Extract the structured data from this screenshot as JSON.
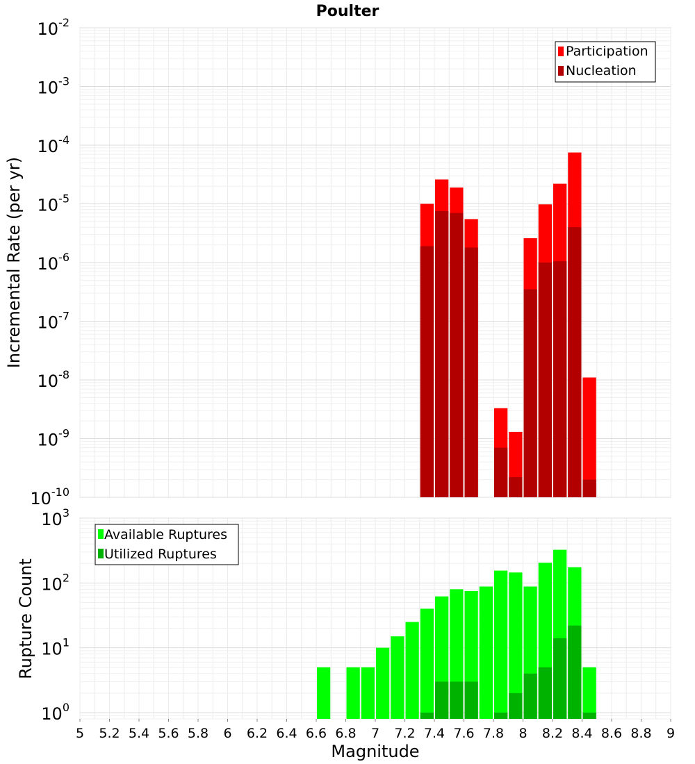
{
  "chart_data": [
    {
      "type": "bar",
      "title": "Poulter",
      "ylabel": "Incremental Rate (per yr)",
      "xlim": [
        5,
        9
      ],
      "ylim": [
        1e-10,
        0.01
      ],
      "yscale": "log",
      "grid": true,
      "legend_position": "top-right",
      "bar_width": 0.1,
      "y_ticks": [
        {
          "base": "10",
          "exp": "-2"
        },
        {
          "base": "10",
          "exp": "-3"
        },
        {
          "base": "10",
          "exp": "-4"
        },
        {
          "base": "10",
          "exp": "-5"
        },
        {
          "base": "10",
          "exp": "-6"
        },
        {
          "base": "10",
          "exp": "-7"
        },
        {
          "base": "10",
          "exp": "-8"
        },
        {
          "base": "10",
          "exp": "-9"
        },
        {
          "base": "10",
          "exp": "-10"
        }
      ],
      "series": [
        {
          "name": "Participation",
          "color": "#ff0000",
          "x": [
            7.35,
            7.45,
            7.55,
            7.65,
            7.85,
            7.95,
            8.05,
            8.15,
            8.25,
            8.35,
            8.45
          ],
          "values": [
            1e-05,
            2.6e-05,
            1.9e-05,
            5.5e-06,
            3.3e-09,
            1.3e-09,
            2.6e-06,
            9.8e-06,
            2.2e-05,
            7.5e-05,
            1.1e-08
          ]
        },
        {
          "name": "Nucleation",
          "color": "#b20000",
          "x": [
            7.35,
            7.45,
            7.55,
            7.65,
            7.85,
            7.95,
            8.05,
            8.15,
            8.25,
            8.35,
            8.45
          ],
          "values": [
            1.9e-06,
            7.5e-06,
            7e-06,
            1.8e-06,
            7e-10,
            2.2e-10,
            3.5e-07,
            1e-06,
            1.05e-06,
            4e-06,
            2e-10
          ]
        }
      ]
    },
    {
      "type": "bar",
      "xlabel": "Magnitude",
      "ylabel": "Rupture Count",
      "xlim": [
        5,
        9
      ],
      "ylim": [
        0.8,
        1000
      ],
      "yscale": "log",
      "grid": true,
      "legend_position": "top-left",
      "bar_width": 0.1,
      "x_ticks": [
        "5",
        "5.2",
        "5.4",
        "5.6",
        "5.8",
        "6",
        "6.2",
        "6.4",
        "6.6",
        "6.8",
        "7",
        "7.2",
        "7.4",
        "7.6",
        "7.8",
        "8",
        "8.2",
        "8.4",
        "8.6",
        "8.8",
        "9"
      ],
      "y_ticks": [
        {
          "base": "10",
          "exp": "3"
        },
        {
          "base": "10",
          "exp": "2"
        },
        {
          "base": "10",
          "exp": "1"
        },
        {
          "base": "10",
          "exp": "0"
        }
      ],
      "series": [
        {
          "name": "Available Ruptures",
          "color": "#00ff00",
          "x": [
            6.65,
            6.85,
            6.95,
            7.05,
            7.15,
            7.25,
            7.35,
            7.45,
            7.55,
            7.65,
            7.75,
            7.85,
            7.95,
            8.05,
            8.15,
            8.25,
            8.35,
            8.45
          ],
          "values": [
            5,
            5,
            5,
            10,
            15,
            25,
            40,
            62,
            80,
            75,
            88,
            155,
            145,
            88,
            205,
            325,
            175,
            5
          ]
        },
        {
          "name": "Utilized Ruptures",
          "color": "#00b200",
          "x": [
            7.35,
            7.45,
            7.55,
            7.65,
            7.85,
            7.95,
            8.05,
            8.15,
            8.25,
            8.35,
            8.45
          ],
          "values": [
            1,
            3,
            3,
            3,
            1,
            2,
            4,
            5,
            14,
            22,
            1
          ]
        }
      ]
    }
  ]
}
